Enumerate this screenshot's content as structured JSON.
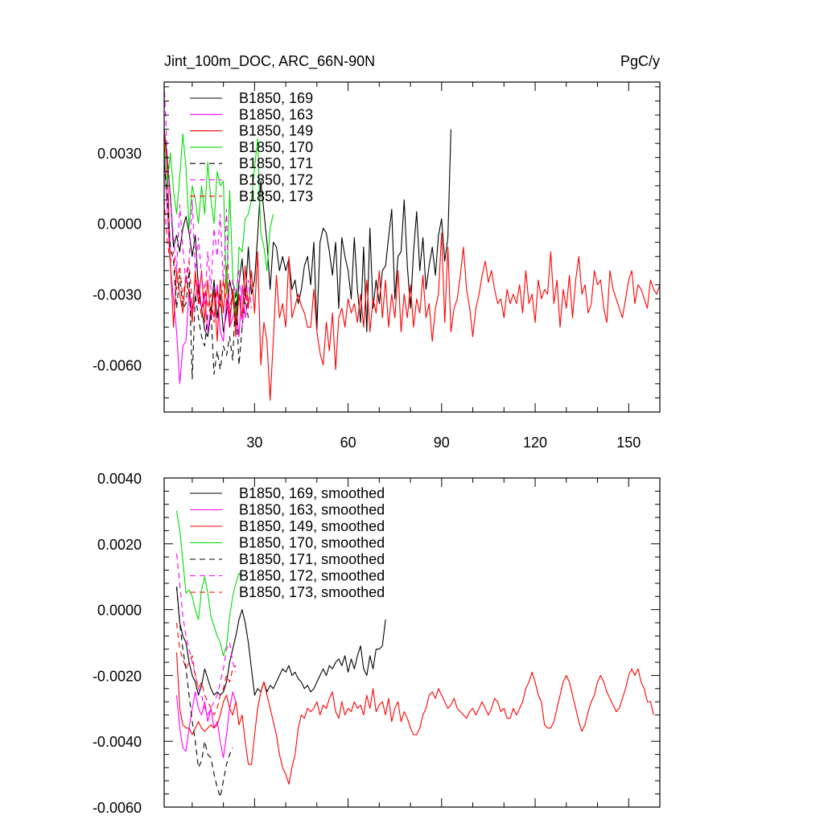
{
  "chart_data": [
    {
      "type": "line",
      "title": "Jint_100m_DOC, ARC_66N-90N",
      "units_label": "PgC/y",
      "xlim": [
        1,
        160
      ],
      "ylim": [
        -0.008,
        0.006
      ],
      "xticks": [
        30,
        60,
        90,
        120,
        150
      ],
      "xtick_labels": [
        "30",
        "60",
        "90",
        "120",
        "150"
      ],
      "yticks": [
        0.003,
        0.0,
        -0.003,
        -0.006
      ],
      "ytick_labels": [
        "0.0030",
        "0.0000",
        "-0.0030",
        "-0.0060"
      ],
      "grid": false,
      "legend_position": "top-left",
      "series": [
        {
          "name": "B1850, 169",
          "color": "#000000",
          "dash": "solid",
          "x_start": 1,
          "values": [
            0.004,
            0.0028,
            0.0012,
            -0.001,
            -0.0005,
            -0.0012,
            -0.0002,
            0.0003,
            -0.0004,
            -0.0014,
            -0.0005,
            -0.0028,
            -0.0036,
            -0.0045,
            -0.0048,
            -0.0038,
            -0.0024,
            -0.004,
            -0.003,
            -0.0046,
            -0.0038,
            -0.0024,
            -0.0031,
            -0.0043,
            -0.0025,
            -0.0015,
            -0.0032,
            -0.001,
            -0.003,
            -0.0024,
            -0.0005,
            0.0018,
            0.0005,
            -0.0008,
            -0.0028,
            -0.0008,
            -0.001,
            -0.002,
            -0.0014,
            -0.002,
            -0.0015,
            -0.0028,
            -0.0024,
            -0.0034,
            -0.0028,
            -0.0018,
            -0.0014,
            -0.0026,
            -0.0008,
            -0.0045,
            -0.0008,
            -0.0002,
            -0.0004,
            -0.0012,
            -0.0022,
            -0.0008,
            -0.0036,
            -0.0006,
            -0.0014,
            -0.002,
            -0.0032,
            -0.0006,
            -0.0028,
            -0.0042,
            -0.001,
            -0.0046,
            -0.0002,
            -0.0036,
            -0.0024,
            -0.0034,
            -0.002,
            -0.0018,
            -0.0006,
            0.0006,
            -0.0032,
            -0.0014,
            -0.0012,
            0.001,
            -0.0018,
            -0.0036,
            -0.0012,
            0.0005,
            -0.002,
            -0.0006,
            -0.0028,
            -0.0018,
            -0.001,
            -0.0022,
            -0.0005,
            0.0002,
            -0.0016,
            -0.0006,
            0.004
          ]
        },
        {
          "name": "B1850, 163",
          "color": "#ff00ff",
          "dash": "solid",
          "x_start": 1,
          "values": [
            0.003,
            0.0005,
            -0.0018,
            -0.0032,
            -0.0046,
            -0.0068,
            -0.0052,
            -0.005,
            -0.0028,
            -0.0038,
            -0.0032,
            -0.0024,
            -0.0036,
            -0.003,
            -0.0046,
            -0.0036,
            -0.004,
            -0.0026,
            -0.0046,
            -0.005,
            -0.0032,
            -0.0044,
            -0.004,
            -0.0035,
            -0.0048,
            -0.0026,
            -0.004,
            -0.0032
          ]
        },
        {
          "name": "B1850, 149",
          "color": "#ff0000",
          "dash": "solid",
          "x_start": 1,
          "values": [
            0.004,
            0.0024,
            -0.0016,
            -0.0044,
            -0.002,
            -0.003,
            -0.0038,
            -0.0022,
            -0.003,
            -0.0042,
            -0.002,
            -0.0034,
            -0.002,
            -0.0042,
            -0.0024,
            -0.004,
            -0.0028,
            -0.005,
            -0.0024,
            -0.0038,
            -0.0018,
            -0.0044,
            -0.0028,
            -0.0048,
            -0.003,
            -0.004,
            -0.0018,
            -0.0036,
            -0.002,
            -0.0038,
            -0.0012,
            -0.006,
            -0.0042,
            -0.005,
            -0.0075,
            -0.005,
            -0.0022,
            -0.004,
            -0.0034,
            -0.0044,
            -0.0014,
            -0.004,
            -0.0035,
            -0.003,
            -0.0035,
            -0.0038,
            -0.0044,
            -0.0044,
            -0.0028,
            -0.0046,
            -0.0055,
            -0.006,
            -0.0042,
            -0.0054,
            -0.0038,
            -0.0062,
            -0.004,
            -0.0036,
            -0.0044,
            -0.0032,
            -0.0038,
            -0.0034,
            -0.0042,
            -0.003,
            -0.0044,
            -0.0024,
            -0.0046,
            -0.0032,
            -0.0038,
            -0.002,
            -0.004,
            -0.0024,
            -0.0044,
            -0.003,
            -0.004,
            -0.002,
            -0.0046,
            -0.003,
            -0.004,
            -0.0026,
            -0.0044,
            -0.0032,
            -0.0038,
            -0.0022,
            -0.004,
            -0.0034,
            -0.005,
            -0.0036,
            -0.003,
            -0.0004,
            -0.0042,
            -0.001,
            -0.0046,
            -0.0036,
            -0.0032,
            -0.0022,
            -0.001,
            -0.0028,
            -0.0036,
            -0.0048,
            -0.0036,
            -0.003,
            -0.0022,
            -0.0016,
            -0.0025,
            -0.002,
            -0.0028,
            -0.0034,
            -0.0032,
            -0.004,
            -0.0028,
            -0.0034,
            -0.003,
            -0.0034,
            -0.0026,
            -0.0038,
            -0.002,
            -0.0034,
            -0.003,
            -0.0042,
            -0.0024,
            -0.0032,
            -0.0028,
            -0.003,
            -0.0012,
            -0.0034,
            -0.0024,
            -0.0044,
            -0.0028,
            -0.0036,
            -0.0022,
            -0.004,
            -0.0024,
            -0.0014,
            -0.003,
            -0.0026,
            -0.0038,
            -0.0034,
            -0.002,
            -0.0026,
            -0.0024,
            -0.0036,
            -0.0042,
            -0.002,
            -0.0028,
            -0.0032,
            -0.0036,
            -0.004,
            -0.0032,
            -0.0024,
            -0.002,
            -0.0034,
            -0.0026,
            -0.0028,
            -0.0032,
            -0.0036,
            -0.0024,
            -0.0028,
            -0.003,
            -0.0026
          ]
        },
        {
          "name": "B1850, 170",
          "color": "#00dd00",
          "dash": "solid",
          "x_start": 1,
          "values": [
            0.0035,
            0.0016,
            0.003,
            0.0014,
            0.0004,
            0.002,
            0.0038,
            0.0024,
            -0.0002,
            0.0016,
            0.001,
            0.0,
            0.0016,
            0.0004,
            0.0026,
            0.001,
            0.0,
            0.0022,
            0.0016,
            0.0018,
            -0.003,
            0.0014,
            -0.0022,
            -0.004,
            -0.001,
            -0.0012,
            0.0002,
            0.0004,
            0.001,
            0.0024,
            0.0036,
            -0.0004,
            -0.001,
            -0.002,
            -0.0002,
            0.0004
          ]
        },
        {
          "name": "B1850, 171",
          "color": "#000000",
          "dash": "dashed",
          "x_start": 1,
          "values": [
            0.0025,
            0.0012,
            -0.001,
            -0.0016,
            -0.0036,
            -0.0022,
            -0.0036,
            -0.0034,
            -0.002,
            -0.0066,
            -0.003,
            -0.004,
            -0.0048,
            -0.0052,
            -0.0038,
            -0.0036,
            -0.0064,
            -0.0054,
            -0.0062,
            -0.0052,
            -0.0056,
            -0.0048,
            -0.0058,
            -0.0028,
            -0.006,
            -0.0044,
            -0.0032,
            -0.004
          ]
        },
        {
          "name": "B1850, 172",
          "color": "#ff00ff",
          "dash": "dashed",
          "x_start": 1,
          "values": [
            0.006,
            0.0028,
            0.001,
            -0.0006,
            -0.002,
            0.0008,
            -0.001,
            -0.0026,
            -0.0016,
            0.001,
            -0.002,
            -0.0006,
            -0.0022,
            -0.0034,
            -0.0012,
            -0.0028,
            -0.0002,
            -0.0014,
            0.0004,
            -0.0026,
            0.0006,
            -0.004,
            -0.0024,
            -0.003,
            -0.002,
            -0.0044,
            -0.0032,
            -0.0024,
            -0.0036
          ]
        },
        {
          "name": "B1850, 173",
          "color": "#ff0000",
          "dash": "dashed",
          "x_start": 1,
          "values": [
            0.001,
            -0.0008,
            -0.0016,
            -0.0012,
            -0.0028,
            -0.0018,
            -0.0032,
            -0.0022,
            -0.0016,
            -0.0036,
            -0.0024,
            -0.003,
            -0.004,
            -0.0026,
            -0.0036,
            -0.003,
            -0.0042,
            -0.0028,
            -0.0036,
            -0.0024,
            -0.0034,
            -0.0038,
            -0.0028,
            -0.0042,
            -0.0032,
            -0.004,
            -0.0028,
            -0.0036
          ]
        }
      ]
    },
    {
      "type": "line",
      "xlim": [
        1,
        160
      ],
      "ylim": [
        -0.006,
        0.004
      ],
      "xticks": [
        30,
        60,
        90,
        120,
        150
      ],
      "xtick_labels": [],
      "yticks": [
        0.004,
        0.002,
        0.0,
        -0.002,
        -0.004,
        -0.006
      ],
      "ytick_labels": [
        "0.0040",
        "0.0020",
        "0.0000",
        "-0.0020",
        "-0.0040",
        "-0.0060"
      ],
      "grid": false,
      "legend_position": "top-left",
      "series": [
        {
          "name": "B1850, 169, smoothed",
          "color": "#000000",
          "dash": "solid",
          "x_start": 5,
          "values": [
            0.0007,
            -0.0004,
            -0.0008,
            -0.001,
            -0.0016,
            -0.002,
            -0.0022,
            -0.0026,
            -0.0023,
            -0.0018,
            -0.0021,
            -0.0024,
            -0.0026,
            -0.0025,
            -0.0026,
            -0.0025,
            -0.0022,
            -0.0016,
            -0.0012,
            -0.0008,
            -0.0003,
            0.0,
            -0.0004,
            -0.001,
            -0.0018,
            -0.0026,
            -0.0024,
            -0.0025,
            -0.0022,
            -0.0025,
            -0.0023,
            -0.0024,
            -0.0022,
            -0.002,
            -0.0018,
            -0.0019,
            -0.0017,
            -0.002,
            -0.0019,
            -0.0021,
            -0.0022,
            -0.0024,
            -0.0023,
            -0.0025,
            -0.0024,
            -0.0022,
            -0.002,
            -0.0018,
            -0.002,
            -0.0017,
            -0.0018,
            -0.0016,
            -0.0015,
            -0.0017,
            -0.0014,
            -0.0019,
            -0.0015,
            -0.0018,
            -0.0014,
            -0.0011,
            -0.0018,
            -0.002,
            -0.0014,
            -0.0018,
            -0.0012,
            -0.0012,
            -0.0011,
            -0.0003
          ]
        },
        {
          "name": "B1850, 163, smoothed",
          "color": "#ff00ff",
          "dash": "solid",
          "x_start": 5,
          "values": [
            -0.0026,
            -0.0036,
            -0.0042,
            -0.0043,
            -0.0036,
            -0.003,
            -0.0025,
            -0.003,
            -0.0032,
            -0.0028,
            -0.0034,
            -0.003,
            -0.0036,
            -0.0034,
            -0.004,
            -0.0045,
            -0.0038,
            -0.003,
            -0.0025,
            -0.0028
          ]
        },
        {
          "name": "B1850, 149, smoothed",
          "color": "#ff0000",
          "dash": "solid",
          "x_start": 5,
          "values": [
            -0.0013,
            -0.003,
            -0.0035,
            -0.0036,
            -0.0036,
            -0.0038,
            -0.0036,
            -0.0034,
            -0.0036,
            -0.0037,
            -0.0036,
            -0.0035,
            -0.0036,
            -0.0035,
            -0.0032,
            -0.0028,
            -0.0026,
            -0.003,
            -0.0032,
            -0.0028,
            -0.0035,
            -0.0032,
            -0.004,
            -0.0047,
            -0.0047,
            -0.0038,
            -0.003,
            -0.0025,
            -0.0022,
            -0.0026,
            -0.003,
            -0.0034,
            -0.0038,
            -0.0044,
            -0.0048,
            -0.005,
            -0.0053,
            -0.0048,
            -0.0044,
            -0.0036,
            -0.0032,
            -0.0033,
            -0.003,
            -0.0031,
            -0.003,
            -0.0028,
            -0.0032,
            -0.0029,
            -0.003,
            -0.0027,
            -0.0025,
            -0.0031,
            -0.0033,
            -0.0028,
            -0.0032,
            -0.003,
            -0.0031,
            -0.0028,
            -0.003,
            -0.0029,
            -0.0032,
            -0.0026,
            -0.003,
            -0.0024,
            -0.0031,
            -0.0029,
            -0.0028,
            -0.0032,
            -0.0027,
            -0.0034,
            -0.003,
            -0.0028,
            -0.0034,
            -0.0031,
            -0.0033,
            -0.0036,
            -0.0038,
            -0.0038,
            -0.0036,
            -0.0032,
            -0.003,
            -0.0026,
            -0.0025,
            -0.0027,
            -0.0024,
            -0.0026,
            -0.0028,
            -0.003,
            -0.0029,
            -0.0027,
            -0.003,
            -0.0031,
            -0.0032,
            -0.0033,
            -0.0031,
            -0.003,
            -0.0032,
            -0.003,
            -0.0028,
            -0.003,
            -0.0032,
            -0.003,
            -0.0027,
            -0.0028,
            -0.0031,
            -0.003,
            -0.0033,
            -0.0033,
            -0.003,
            -0.0032,
            -0.003,
            -0.0028,
            -0.0024,
            -0.0022,
            -0.0019,
            -0.0022,
            -0.0026,
            -0.0028,
            -0.0035,
            -0.0036,
            -0.0036,
            -0.0034,
            -0.003,
            -0.0026,
            -0.0022,
            -0.002,
            -0.0022,
            -0.0026,
            -0.003,
            -0.0034,
            -0.0037,
            -0.0035,
            -0.0031,
            -0.0028,
            -0.0026,
            -0.0022,
            -0.002,
            -0.0022,
            -0.0025,
            -0.0027,
            -0.0029,
            -0.0031,
            -0.003,
            -0.0027,
            -0.0024,
            -0.002,
            -0.0018,
            -0.002,
            -0.0018,
            -0.0022,
            -0.0024,
            -0.0028,
            -0.0028,
            -0.0032
          ]
        },
        {
          "name": "B1850, 170, smoothed",
          "color": "#00dd00",
          "dash": "solid",
          "x_start": 5,
          "values": [
            0.003,
            0.0024,
            0.0015,
            0.0005,
            0.0006,
            0.0004,
            0.0,
            -0.0003,
            0.0006,
            0.001,
            0.0005,
            -0.0002,
            -0.0005,
            -0.0008,
            -0.001,
            -0.0014,
            -0.0011,
            -0.0002,
            0.0004,
            0.0008,
            0.0011,
            0.001
          ]
        },
        {
          "name": "B1850, 171, smoothed",
          "color": "#000000",
          "dash": "dashed",
          "x_start": 5,
          "values": [
            0.0007,
            -0.0004,
            -0.0012,
            -0.0018,
            -0.0026,
            -0.0034,
            -0.004,
            -0.0048,
            -0.0046,
            -0.004,
            -0.0044,
            -0.0045,
            -0.005,
            -0.0054,
            -0.0057,
            -0.0052,
            -0.0047,
            -0.0044,
            -0.0042
          ]
        },
        {
          "name": "B1850, 172, smoothed",
          "color": "#ff00ff",
          "dash": "dashed",
          "x_start": 5,
          "values": [
            0.0017,
            0.0008,
            -0.0002,
            -0.0008,
            -0.0012,
            -0.0016,
            -0.002,
            -0.0024,
            -0.0026,
            -0.003,
            -0.0032,
            -0.003,
            -0.0028,
            -0.0026,
            -0.0022,
            -0.0018,
            -0.0012,
            -0.001,
            -0.0016,
            -0.0019
          ]
        },
        {
          "name": "B1850, 173, smoothed",
          "color": "#ff0000",
          "dash": "dashed",
          "x_start": 5,
          "values": [
            -0.0004,
            -0.0012,
            -0.0015,
            -0.0018,
            -0.0016,
            -0.0014,
            -0.002,
            -0.0024,
            -0.0022,
            -0.0026,
            -0.0028,
            -0.003,
            -0.0032,
            -0.003,
            -0.0026,
            -0.0024,
            -0.002,
            -0.0022,
            -0.0018,
            -0.0017
          ]
        }
      ]
    }
  ]
}
